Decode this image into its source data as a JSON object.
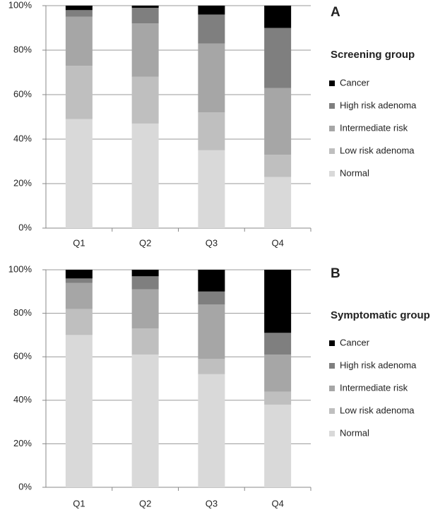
{
  "chart_data": [
    {
      "type": "bar",
      "stacked": true,
      "label": "A",
      "title": "Screening group",
      "categories": [
        "Q1",
        "Q2",
        "Q3",
        "Q4"
      ],
      "series": [
        {
          "name": "Normal",
          "color": "#d9d9d9",
          "values": [
            49,
            47,
            35,
            23
          ]
        },
        {
          "name": "Low risk adenoma",
          "color": "#bfbfbf",
          "values": [
            24,
            21,
            17,
            10
          ]
        },
        {
          "name": "Intermediate risk",
          "color": "#a6a6a6",
          "values": [
            22,
            24,
            31,
            30
          ]
        },
        {
          "name": "High risk adenoma",
          "color": "#7f7f7f",
          "values": [
            3,
            7,
            13,
            27
          ]
        },
        {
          "name": "Cancer",
          "color": "#000000",
          "values": [
            2,
            1,
            4,
            10
          ]
        }
      ],
      "ylim": [
        0,
        100
      ],
      "yticks": [
        {
          "value": 0,
          "label": "0%"
        },
        {
          "value": 20,
          "label": "20%"
        },
        {
          "value": 40,
          "label": "40%"
        },
        {
          "value": 60,
          "label": "60%"
        },
        {
          "value": 80,
          "label": "80%"
        },
        {
          "value": 100,
          "label": "100%"
        }
      ],
      "grid": true
    },
    {
      "type": "bar",
      "stacked": true,
      "label": "B",
      "title": "Symptomatic group",
      "categories": [
        "Q1",
        "Q2",
        "Q3",
        "Q4"
      ],
      "series": [
        {
          "name": "Normal",
          "color": "#d9d9d9",
          "values": [
            70,
            61,
            52,
            38
          ]
        },
        {
          "name": "Low risk adenoma",
          "color": "#bfbfbf",
          "values": [
            12,
            12,
            7,
            6
          ]
        },
        {
          "name": "Intermediate risk",
          "color": "#a6a6a6",
          "values": [
            12,
            18,
            25,
            17
          ]
        },
        {
          "name": "High risk adenoma",
          "color": "#7f7f7f",
          "values": [
            2,
            6,
            6,
            10
          ]
        },
        {
          "name": "Cancer",
          "color": "#000000",
          "values": [
            4,
            3,
            10,
            29
          ]
        }
      ],
      "ylim": [
        0,
        100
      ],
      "yticks": [
        {
          "value": 0,
          "label": "0%"
        },
        {
          "value": 20,
          "label": "20%"
        },
        {
          "value": 40,
          "label": "40%"
        },
        {
          "value": 60,
          "label": "60%"
        },
        {
          "value": 80,
          "label": "80%"
        },
        {
          "value": 100,
          "label": "100%"
        }
      ],
      "grid": true
    }
  ]
}
